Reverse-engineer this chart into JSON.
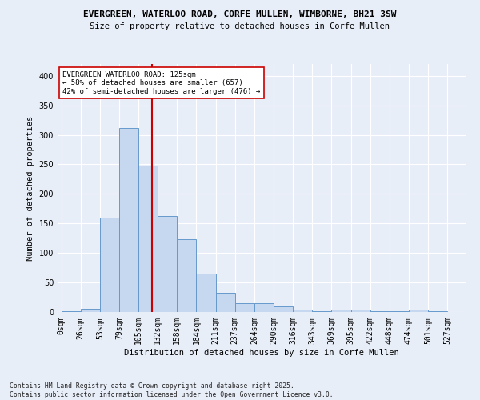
{
  "title1": "EVERGREEN, WATERLOO ROAD, CORFE MULLEN, WIMBORNE, BH21 3SW",
  "title2": "Size of property relative to detached houses in Corfe Mullen",
  "xlabel": "Distribution of detached houses by size in Corfe Mullen",
  "ylabel": "Number of detached properties",
  "bar_left_edges": [
    0,
    26.5,
    53,
    79.5,
    106,
    132.5,
    159,
    185.5,
    212,
    238.5,
    265,
    291.5,
    318,
    344.5,
    371,
    397.5,
    424,
    450.5,
    477,
    503.5
  ],
  "bar_heights": [
    2,
    5,
    160,
    312,
    248,
    163,
    123,
    65,
    32,
    15,
    15,
    9,
    4,
    1,
    4,
    4,
    1,
    1,
    4,
    1
  ],
  "bar_width": 26.5,
  "bar_color": "#c5d8f0",
  "bar_edge_color": "#6699cc",
  "tick_labels": [
    "0sqm",
    "26sqm",
    "53sqm",
    "79sqm",
    "105sqm",
    "132sqm",
    "158sqm",
    "184sqm",
    "211sqm",
    "237sqm",
    "264sqm",
    "290sqm",
    "316sqm",
    "343sqm",
    "369sqm",
    "395sqm",
    "422sqm",
    "448sqm",
    "474sqm",
    "501sqm",
    "527sqm"
  ],
  "tick_positions": [
    0,
    26.5,
    53,
    79.5,
    106,
    132.5,
    159,
    185.5,
    212,
    238.5,
    265,
    291.5,
    318,
    344.5,
    371,
    397.5,
    424,
    450.5,
    477,
    503.5,
    530
  ],
  "ylim": [
    0,
    420
  ],
  "xlim": [
    -5,
    555
  ],
  "yticks": [
    0,
    50,
    100,
    150,
    200,
    250,
    300,
    350,
    400
  ],
  "property_size": 125,
  "vline_color": "#cc0000",
  "annotation_text": "EVERGREEN WATERLOO ROAD: 125sqm\n← 58% of detached houses are smaller (657)\n42% of semi-detached houses are larger (476) →",
  "annotation_box_color": "#ffffff",
  "annotation_border_color": "#cc0000",
  "footer": "Contains HM Land Registry data © Crown copyright and database right 2025.\nContains public sector information licensed under the Open Government Licence v3.0.",
  "bg_color": "#e8eef8",
  "plot_bg_color": "#e8eef8"
}
